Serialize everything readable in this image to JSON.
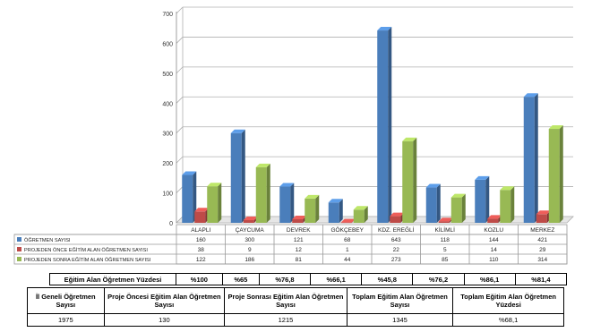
{
  "chart_data": {
    "type": "bar",
    "categories": [
      "ALAPLI",
      "ÇAYCUMA",
      "DEVREK",
      "GÖKÇEBEY",
      "KDZ. EREĞLİ",
      "KİLİMLİ",
      "KOZLU",
      "MERKEZ"
    ],
    "series": [
      {
        "name": "ÖĞRETMEN SAYISI",
        "color": "#4a7ebb",
        "values": [
          160,
          300,
          121,
          68,
          643,
          118,
          144,
          421
        ]
      },
      {
        "name": "PROJEDEN ÖNCE EĞİTİM ALAN ÖĞRETMEN SAYISI",
        "color": "#be4b48",
        "values": [
          38,
          9,
          12,
          1,
          22,
          5,
          14,
          29
        ]
      },
      {
        "name": "PROJEDEN SONRA EĞİTİM ALAN ÖĞRETMEN SAYISI",
        "color": "#98b954",
        "values": [
          122,
          186,
          81,
          44,
          273,
          85,
          110,
          314
        ]
      }
    ],
    "y_ticks": [
      "0",
      "100",
      "200",
      "300",
      "400",
      "500",
      "600",
      "700"
    ],
    "ylim": [
      0,
      700
    ],
    "grid": true,
    "legend": "data-table-left"
  },
  "pct_row": {
    "label": "Eğitim Alan Öğretmen Yüzdesi",
    "values": [
      "%100",
      "%65",
      "%76,8",
      "%66,1",
      "%45,8",
      "%76,2",
      "%86,1",
      "%81,4"
    ]
  },
  "summary": {
    "headers": [
      "İl Geneli Öğretmen Sayısı",
      "Proje Öncesi Eğitim Alan Öğretmen Sayısı",
      "Proje Sonrası Eğitim Alan Öğretmen Sayısı",
      "Toplam Eğitim Alan Öğretmen Sayısı",
      "Toplam Eğitim Alan Öğretmen Yüzdesi"
    ],
    "values": [
      "1975",
      "130",
      "1215",
      "1345",
      "%68,1"
    ]
  }
}
